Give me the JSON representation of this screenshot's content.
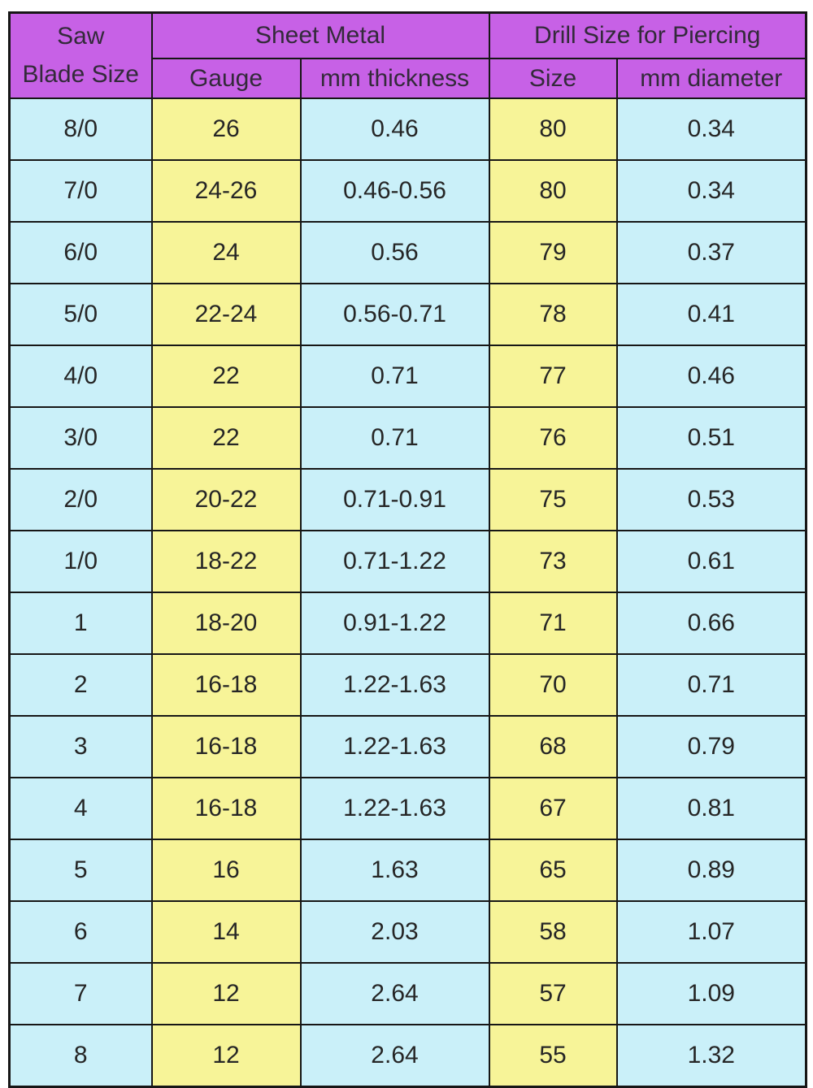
{
  "colors": {
    "header_bg": "#c761e6",
    "yellow_column_bg": "#f7f498",
    "cyan_column_bg": "#caf0f9",
    "border": "#161616",
    "header_text": "#332a3a",
    "cell_text": "#262626"
  },
  "chart_data": {
    "type": "table",
    "header": {
      "saw_line1": "Saw",
      "saw_line2": "Blade Size",
      "group_sheet_metal": "Sheet Metal",
      "group_drill": "Drill Size for Piercing",
      "sub_gauge": "Gauge",
      "sub_mm_thickness": "mm thickness",
      "sub_size": "Size",
      "sub_mm_diameter": "mm diameter"
    },
    "columns": [
      "Saw Blade Size",
      "Gauge",
      "mm thickness",
      "Size",
      "mm diameter"
    ],
    "column_groups": [
      {
        "label": "Sheet Metal",
        "columns": [
          "Gauge",
          "mm thickness"
        ]
      },
      {
        "label": "Drill Size for Piercing",
        "columns": [
          "Size",
          "mm diameter"
        ]
      }
    ],
    "column_keys": [
      "saw-blade-size",
      "gauge",
      "mm-thickness",
      "size",
      "mm-diameter"
    ],
    "rows": [
      [
        "8/0",
        "26",
        "0.46",
        "80",
        "0.34"
      ],
      [
        "7/0",
        "24-26",
        "0.46-0.56",
        "80",
        "0.34"
      ],
      [
        "6/0",
        "24",
        "0.56",
        "79",
        "0.37"
      ],
      [
        "5/0",
        "22-24",
        "0.56-0.71",
        "78",
        "0.41"
      ],
      [
        "4/0",
        "22",
        "0.71",
        "77",
        "0.46"
      ],
      [
        "3/0",
        "22",
        "0.71",
        "76",
        "0.51"
      ],
      [
        "2/0",
        "20-22",
        "0.71-0.91",
        "75",
        "0.53"
      ],
      [
        "1/0",
        "18-22",
        "0.71-1.22",
        "73",
        "0.61"
      ],
      [
        "1",
        "18-20",
        "0.91-1.22",
        "71",
        "0.66"
      ],
      [
        "2",
        "16-18",
        "1.22-1.63",
        "70",
        "0.71"
      ],
      [
        "3",
        "16-18",
        "1.22-1.63",
        "68",
        "0.79"
      ],
      [
        "4",
        "16-18",
        "1.22-1.63",
        "67",
        "0.81"
      ],
      [
        "5",
        "16",
        "1.63",
        "65",
        "0.89"
      ],
      [
        "6",
        "14",
        "2.03",
        "58",
        "1.07"
      ],
      [
        "7",
        "12",
        "2.64",
        "57",
        "1.09"
      ],
      [
        "8",
        "12",
        "2.64",
        "55",
        "1.32"
      ]
    ]
  }
}
